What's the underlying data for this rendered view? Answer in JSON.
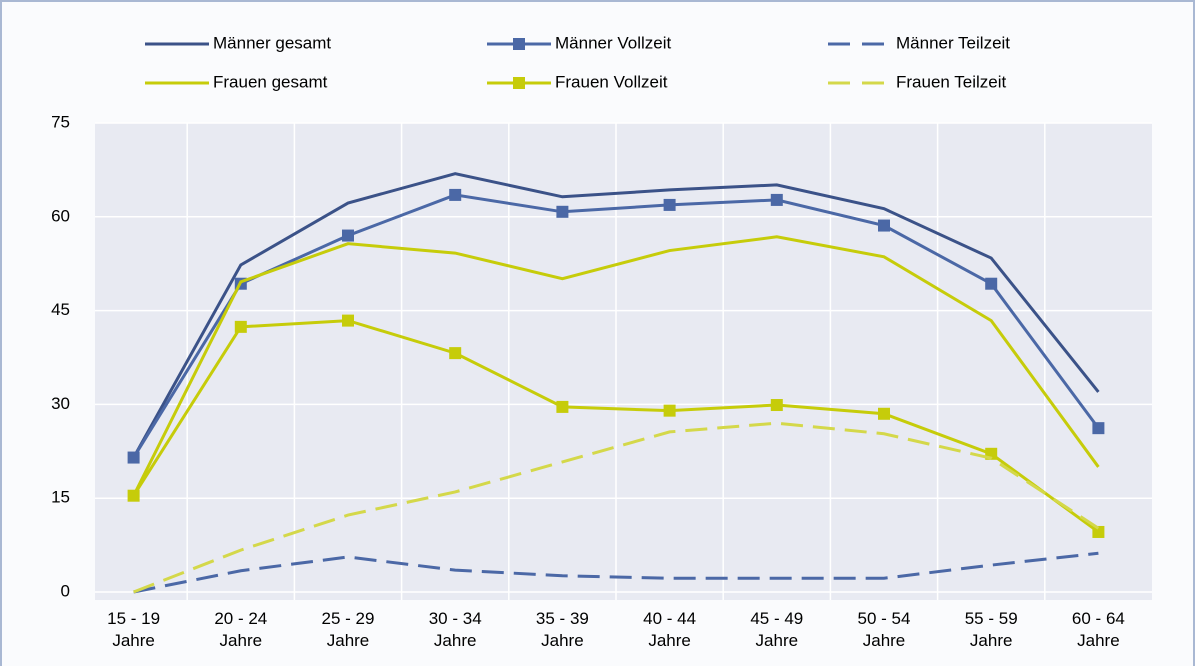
{
  "chart_data": {
    "type": "line",
    "categories": [
      "15 - 19 Jahre",
      "20 - 24 Jahre",
      "25 - 29 Jahre",
      "30 - 34 Jahre",
      "35 - 39 Jahre",
      "40 - 44 Jahre",
      "45 - 49 Jahre",
      "50 - 54 Jahre",
      "55 - 59 Jahre",
      "60 - 64 Jahre"
    ],
    "ylim": [
      0,
      75
    ],
    "yticks": [
      0,
      15,
      30,
      45,
      60,
      75
    ],
    "grid": true,
    "series": [
      {
        "name": "Männer gesamt",
        "color": "#3b5288",
        "line_style": "solid",
        "marker": "none",
        "values": [
          21.5,
          52.3,
          62.2,
          66.9,
          63.2,
          64.3,
          65.1,
          61.3,
          53.4,
          32
        ]
      },
      {
        "name": "Männer Vollzeit",
        "color": "#4b68a6",
        "line_style": "solid",
        "marker": "square",
        "values": [
          21.5,
          49.3,
          57,
          63.5,
          60.8,
          61.9,
          62.7,
          58.6,
          49.3,
          26.2
        ]
      },
      {
        "name": "Männer Teilzeit",
        "color": "#4b68a6",
        "line_style": "dashed",
        "marker": "none",
        "values": [
          0,
          3.4,
          5.6,
          3.5,
          2.6,
          2.2,
          2.2,
          2.2,
          4.3,
          6.2
        ]
      },
      {
        "name": "Frauen gesamt",
        "color": "#c6cc0a",
        "line_style": "solid",
        "marker": "none",
        "values": [
          15.4,
          49.6,
          55.7,
          54.2,
          50.1,
          54.6,
          56.8,
          53.6,
          43.4,
          20
        ]
      },
      {
        "name": "Frauen Vollzeit",
        "color": "#c6cc0a",
        "line_style": "solid",
        "marker": "square",
        "values": [
          15.4,
          42.4,
          43.4,
          38.2,
          29.6,
          29,
          29.9,
          28.5,
          22.1,
          9.6
        ]
      },
      {
        "name": "Frauen Teilzeit",
        "color": "#d4d84a",
        "line_style": "dashed",
        "marker": "none",
        "values": [
          0,
          6.7,
          12.3,
          16,
          20.8,
          25.6,
          27,
          25.3,
          21.4,
          10.2
        ]
      }
    ]
  }
}
